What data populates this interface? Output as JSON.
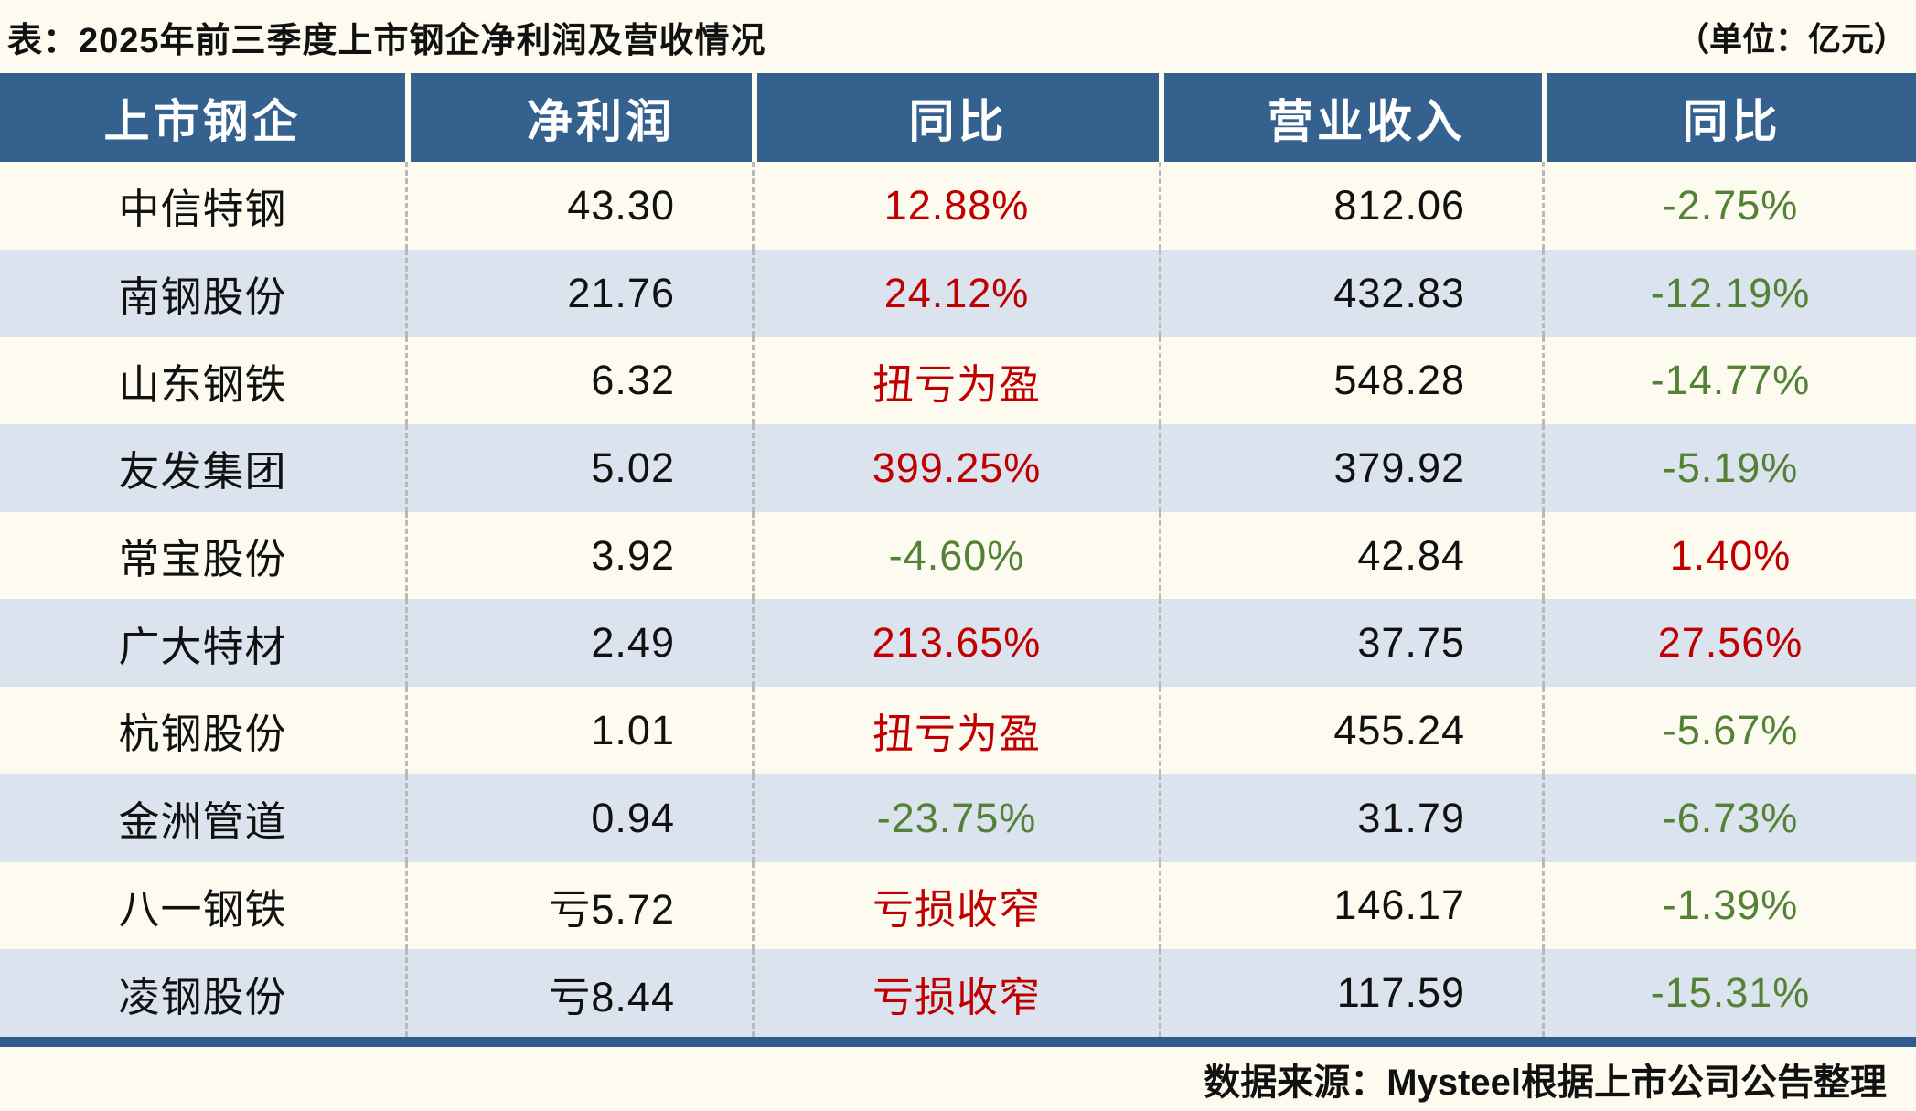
{
  "page": {
    "title": "表：2025年前三季度上市钢企净利润及营收情况",
    "unit_note": "（单位：亿元）",
    "source_note": "数据来源：Mysteel根据上市公司公告整理"
  },
  "colors": {
    "page_bg": "#FDFBEF",
    "header_bg": "#35618E",
    "header_text": "#FFFFFF",
    "row_alt_bg": "#DAE3EE",
    "body_text": "#111111",
    "red": "#C00000",
    "green": "#538135",
    "bottom_bar": "#2F5C8D",
    "dash": "#B9B9B9"
  },
  "chart_data": {
    "type": "table",
    "title": "表：2025年前三季度上市钢企净利润及营收情况",
    "unit": "亿元",
    "columns": [
      "上市钢企",
      "净利润",
      "同比",
      "营业收入",
      "同比"
    ],
    "rows": [
      {
        "company": "中信特钢",
        "net_profit": "43.30",
        "profit_yoy": "12.88%",
        "profit_yoy_tone": "red",
        "revenue": "812.06",
        "revenue_yoy": "-2.75%",
        "revenue_yoy_tone": "green"
      },
      {
        "company": "南钢股份",
        "net_profit": "21.76",
        "profit_yoy": "24.12%",
        "profit_yoy_tone": "red",
        "revenue": "432.83",
        "revenue_yoy": "-12.19%",
        "revenue_yoy_tone": "green"
      },
      {
        "company": "山东钢铁",
        "net_profit": "6.32",
        "profit_yoy": "扭亏为盈",
        "profit_yoy_tone": "red",
        "revenue": "548.28",
        "revenue_yoy": "-14.77%",
        "revenue_yoy_tone": "green"
      },
      {
        "company": "友发集团",
        "net_profit": "5.02",
        "profit_yoy": "399.25%",
        "profit_yoy_tone": "red",
        "revenue": "379.92",
        "revenue_yoy": "-5.19%",
        "revenue_yoy_tone": "green"
      },
      {
        "company": "常宝股份",
        "net_profit": "3.92",
        "profit_yoy": "-4.60%",
        "profit_yoy_tone": "green",
        "revenue": "42.84",
        "revenue_yoy": "1.40%",
        "revenue_yoy_tone": "red"
      },
      {
        "company": "广大特材",
        "net_profit": "2.49",
        "profit_yoy": "213.65%",
        "profit_yoy_tone": "red",
        "revenue": "37.75",
        "revenue_yoy": "27.56%",
        "revenue_yoy_tone": "red"
      },
      {
        "company": "杭钢股份",
        "net_profit": "1.01",
        "profit_yoy": "扭亏为盈",
        "profit_yoy_tone": "red",
        "revenue": "455.24",
        "revenue_yoy": "-5.67%",
        "revenue_yoy_tone": "green"
      },
      {
        "company": "金洲管道",
        "net_profit": "0.94",
        "profit_yoy": "-23.75%",
        "profit_yoy_tone": "green",
        "revenue": "31.79",
        "revenue_yoy": "-6.73%",
        "revenue_yoy_tone": "green"
      },
      {
        "company": "八一钢铁",
        "net_profit": "亏5.72",
        "profit_yoy": "亏损收窄",
        "profit_yoy_tone": "red",
        "revenue": "146.17",
        "revenue_yoy": "-1.39%",
        "revenue_yoy_tone": "green"
      },
      {
        "company": "凌钢股份",
        "net_profit": "亏8.44",
        "profit_yoy": "亏损收窄",
        "profit_yoy_tone": "red",
        "revenue": "117.59",
        "revenue_yoy": "-15.31%",
        "revenue_yoy_tone": "green"
      }
    ],
    "source": "数据来源：Mysteel根据上市公司公告整理",
    "layout": {
      "legend": "none",
      "grid": "row-striped",
      "header_style": "solid-blue"
    }
  }
}
